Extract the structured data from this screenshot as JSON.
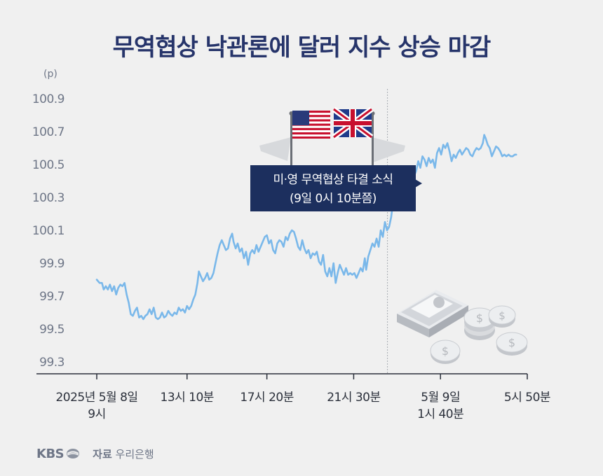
{
  "title": "무역협상 낙관론에 달러 지수 상승 마감",
  "chart_data": {
    "type": "line",
    "unit": "(p)",
    "ylim": [
      99.3,
      100.9
    ],
    "yticks": [
      "100.9",
      "100.7",
      "100.5",
      "100.3",
      "100.1",
      "99.9",
      "99.7",
      "99.5",
      "99.3"
    ],
    "xticks": [
      {
        "t": 0,
        "lines": [
          "2025년 5월 8일",
          "9시"
        ]
      },
      {
        "t": 260,
        "lines": [
          "13시 10분"
        ]
      },
      {
        "t": 490,
        "lines": [
          "17시 20분"
        ]
      },
      {
        "t": 740,
        "lines": [
          "21시 30분"
        ]
      },
      {
        "t": 990,
        "lines": [
          "5월 9일",
          "1시 40분"
        ]
      },
      {
        "t": 1240,
        "lines": [
          "5시 50분"
        ]
      }
    ],
    "xlim": [
      -120,
      1260
    ],
    "event": {
      "t": 910,
      "label_lines": [
        "미·영 무역협상 타결 소식",
        "(9일 0시 10분쯤)"
      ]
    },
    "series": [
      {
        "color": "#7ab8ea",
        "points": [
          [
            0,
            99.8
          ],
          [
            8,
            99.78
          ],
          [
            15,
            99.78
          ],
          [
            20,
            99.74
          ],
          [
            26,
            99.76
          ],
          [
            32,
            99.74
          ],
          [
            38,
            99.77
          ],
          [
            44,
            99.73
          ],
          [
            50,
            99.76
          ],
          [
            56,
            99.71
          ],
          [
            62,
            99.75
          ],
          [
            68,
            99.77
          ],
          [
            74,
            99.76
          ],
          [
            80,
            99.78
          ],
          [
            86,
            99.71
          ],
          [
            92,
            99.66
          ],
          [
            98,
            99.59
          ],
          [
            104,
            99.58
          ],
          [
            110,
            99.61
          ],
          [
            116,
            99.63
          ],
          [
            122,
            99.57
          ],
          [
            128,
            99.58
          ],
          [
            134,
            99.56
          ],
          [
            140,
            99.58
          ],
          [
            146,
            99.59
          ],
          [
            152,
            99.62
          ],
          [
            158,
            99.59
          ],
          [
            164,
            99.63
          ],
          [
            170,
            99.57
          ],
          [
            176,
            99.56
          ],
          [
            182,
            99.57
          ],
          [
            188,
            99.6
          ],
          [
            194,
            99.57
          ],
          [
            200,
            99.58
          ],
          [
            206,
            99.61
          ],
          [
            212,
            99.59
          ],
          [
            218,
            99.58
          ],
          [
            224,
            99.6
          ],
          [
            230,
            99.59
          ],
          [
            236,
            99.63
          ],
          [
            242,
            99.61
          ],
          [
            248,
            99.62
          ],
          [
            254,
            99.6
          ],
          [
            260,
            99.64
          ],
          [
            266,
            99.62
          ],
          [
            272,
            99.64
          ],
          [
            278,
            99.68
          ],
          [
            284,
            99.71
          ],
          [
            290,
            99.78
          ],
          [
            294,
            99.85
          ],
          [
            300,
            99.82
          ],
          [
            306,
            99.79
          ],
          [
            312,
            99.81
          ],
          [
            318,
            99.84
          ],
          [
            324,
            99.8
          ],
          [
            330,
            99.81
          ],
          [
            336,
            99.84
          ],
          [
            342,
            99.9
          ],
          [
            348,
            99.96
          ],
          [
            354,
            100.01
          ],
          [
            360,
            100.04
          ],
          [
            366,
            100.01
          ],
          [
            372,
            99.98
          ],
          [
            378,
            99.99
          ],
          [
            384,
            100.05
          ],
          [
            390,
            100.08
          ],
          [
            394,
            100.03
          ],
          [
            400,
            99.99
          ],
          [
            406,
            100.02
          ],
          [
            412,
            99.97
          ],
          [
            418,
            99.99
          ],
          [
            424,
            99.93
          ],
          [
            430,
            99.97
          ],
          [
            436,
            99.89
          ],
          [
            442,
            99.96
          ],
          [
            448,
            99.98
          ],
          [
            454,
            99.96
          ],
          [
            460,
            100.01
          ],
          [
            466,
            99.97
          ],
          [
            472,
            100.0
          ],
          [
            478,
            100.03
          ],
          [
            484,
            100.06
          ],
          [
            490,
            100.07
          ],
          [
            496,
            100.02
          ],
          [
            502,
            100.04
          ],
          [
            508,
            99.98
          ],
          [
            514,
            99.96
          ],
          [
            520,
            100.02
          ],
          [
            526,
            100.04
          ],
          [
            532,
            100.03
          ],
          [
            538,
            100.0
          ],
          [
            544,
            100.06
          ],
          [
            550,
            100.04
          ],
          [
            556,
            100.08
          ],
          [
            562,
            100.1
          ],
          [
            568,
            100.09
          ],
          [
            574,
            100.05
          ],
          [
            580,
            100.0
          ],
          [
            586,
            99.98
          ],
          [
            592,
            100.04
          ],
          [
            598,
            99.99
          ],
          [
            604,
            99.96
          ],
          [
            610,
            99.98
          ],
          [
            616,
            99.93
          ],
          [
            622,
            99.96
          ],
          [
            628,
            99.95
          ],
          [
            634,
            99.97
          ],
          [
            640,
            99.91
          ],
          [
            646,
            99.89
          ],
          [
            652,
            99.95
          ],
          [
            658,
            99.85
          ],
          [
            664,
            99.82
          ],
          [
            670,
            99.87
          ],
          [
            676,
            99.82
          ],
          [
            682,
            99.9
          ],
          [
            688,
            99.78
          ],
          [
            694,
            99.84
          ],
          [
            700,
            99.89
          ],
          [
            706,
            99.86
          ],
          [
            712,
            99.83
          ],
          [
            718,
            99.87
          ],
          [
            724,
            99.83
          ],
          [
            730,
            99.84
          ],
          [
            736,
            99.83
          ],
          [
            742,
            99.84
          ],
          [
            748,
            99.81
          ],
          [
            754,
            99.84
          ],
          [
            760,
            99.87
          ],
          [
            766,
            99.85
          ],
          [
            772,
            99.93
          ],
          [
            776,
            99.86
          ],
          [
            782,
            99.94
          ],
          [
            788,
            99.98
          ],
          [
            794,
            100.02
          ],
          [
            800,
            100.0
          ],
          [
            806,
            100.05
          ],
          [
            812,
            100.0
          ],
          [
            818,
            100.1
          ],
          [
            824,
            100.06
          ],
          [
            830,
            100.15
          ],
          [
            836,
            100.1
          ],
          [
            842,
            100.12
          ],
          [
            848,
            100.18
          ],
          [
            852,
            100.25
          ],
          [
            856,
            100.3
          ],
          [
            860,
            100.27
          ],
          [
            866,
            100.36
          ],
          [
            872,
            100.41
          ],
          [
            878,
            100.4
          ],
          [
            884,
            100.44
          ],
          [
            890,
            100.46
          ],
          [
            896,
            100.43
          ],
          [
            902,
            100.44
          ],
          [
            908,
            100.46
          ],
          [
            914,
            100.43
          ],
          [
            920,
            100.46
          ],
          [
            926,
            100.52
          ],
          [
            932,
            100.48
          ],
          [
            938,
            100.55
          ],
          [
            944,
            100.53
          ],
          [
            950,
            100.49
          ],
          [
            956,
            100.54
          ],
          [
            962,
            100.51
          ],
          [
            968,
            100.53
          ],
          [
            974,
            100.48
          ],
          [
            980,
            100.57
          ],
          [
            986,
            100.6
          ],
          [
            992,
            100.56
          ],
          [
            998,
            100.62
          ],
          [
            1004,
            100.6
          ],
          [
            1010,
            100.63
          ],
          [
            1016,
            100.58
          ],
          [
            1022,
            100.52
          ],
          [
            1028,
            100.56
          ],
          [
            1034,
            100.54
          ],
          [
            1040,
            100.57
          ],
          [
            1046,
            100.59
          ],
          [
            1052,
            100.56
          ],
          [
            1058,
            100.58
          ],
          [
            1064,
            100.6
          ],
          [
            1070,
            100.59
          ],
          [
            1076,
            100.56
          ],
          [
            1082,
            100.55
          ],
          [
            1088,
            100.58
          ],
          [
            1094,
            100.6
          ],
          [
            1100,
            100.59
          ],
          [
            1106,
            100.6
          ],
          [
            1112,
            100.63
          ],
          [
            1116,
            100.68
          ],
          [
            1120,
            100.66
          ],
          [
            1126,
            100.62
          ],
          [
            1132,
            100.6
          ],
          [
            1138,
            100.55
          ],
          [
            1144,
            100.58
          ],
          [
            1150,
            100.61
          ],
          [
            1156,
            100.6
          ],
          [
            1162,
            100.58
          ],
          [
            1168,
            100.55
          ],
          [
            1174,
            100.56
          ],
          [
            1180,
            100.55
          ],
          [
            1186,
            100.56
          ],
          [
            1192,
            100.55
          ],
          [
            1198,
            100.55
          ],
          [
            1204,
            100.56
          ],
          [
            1208,
            100.56
          ]
        ]
      }
    ]
  },
  "footer": {
    "logo": "KBS",
    "source_label": "자료",
    "source_name": "우리은행"
  },
  "colors": {
    "title": "#26346a",
    "line": "#7ab8ea",
    "callout_bg": "#1c2f5e",
    "axis": "#2a2f3a",
    "event_line": "#a8acb3"
  },
  "icons": [
    "us-flag-icon",
    "uk-flag-icon",
    "money-stack-icon",
    "coins-icon"
  ]
}
